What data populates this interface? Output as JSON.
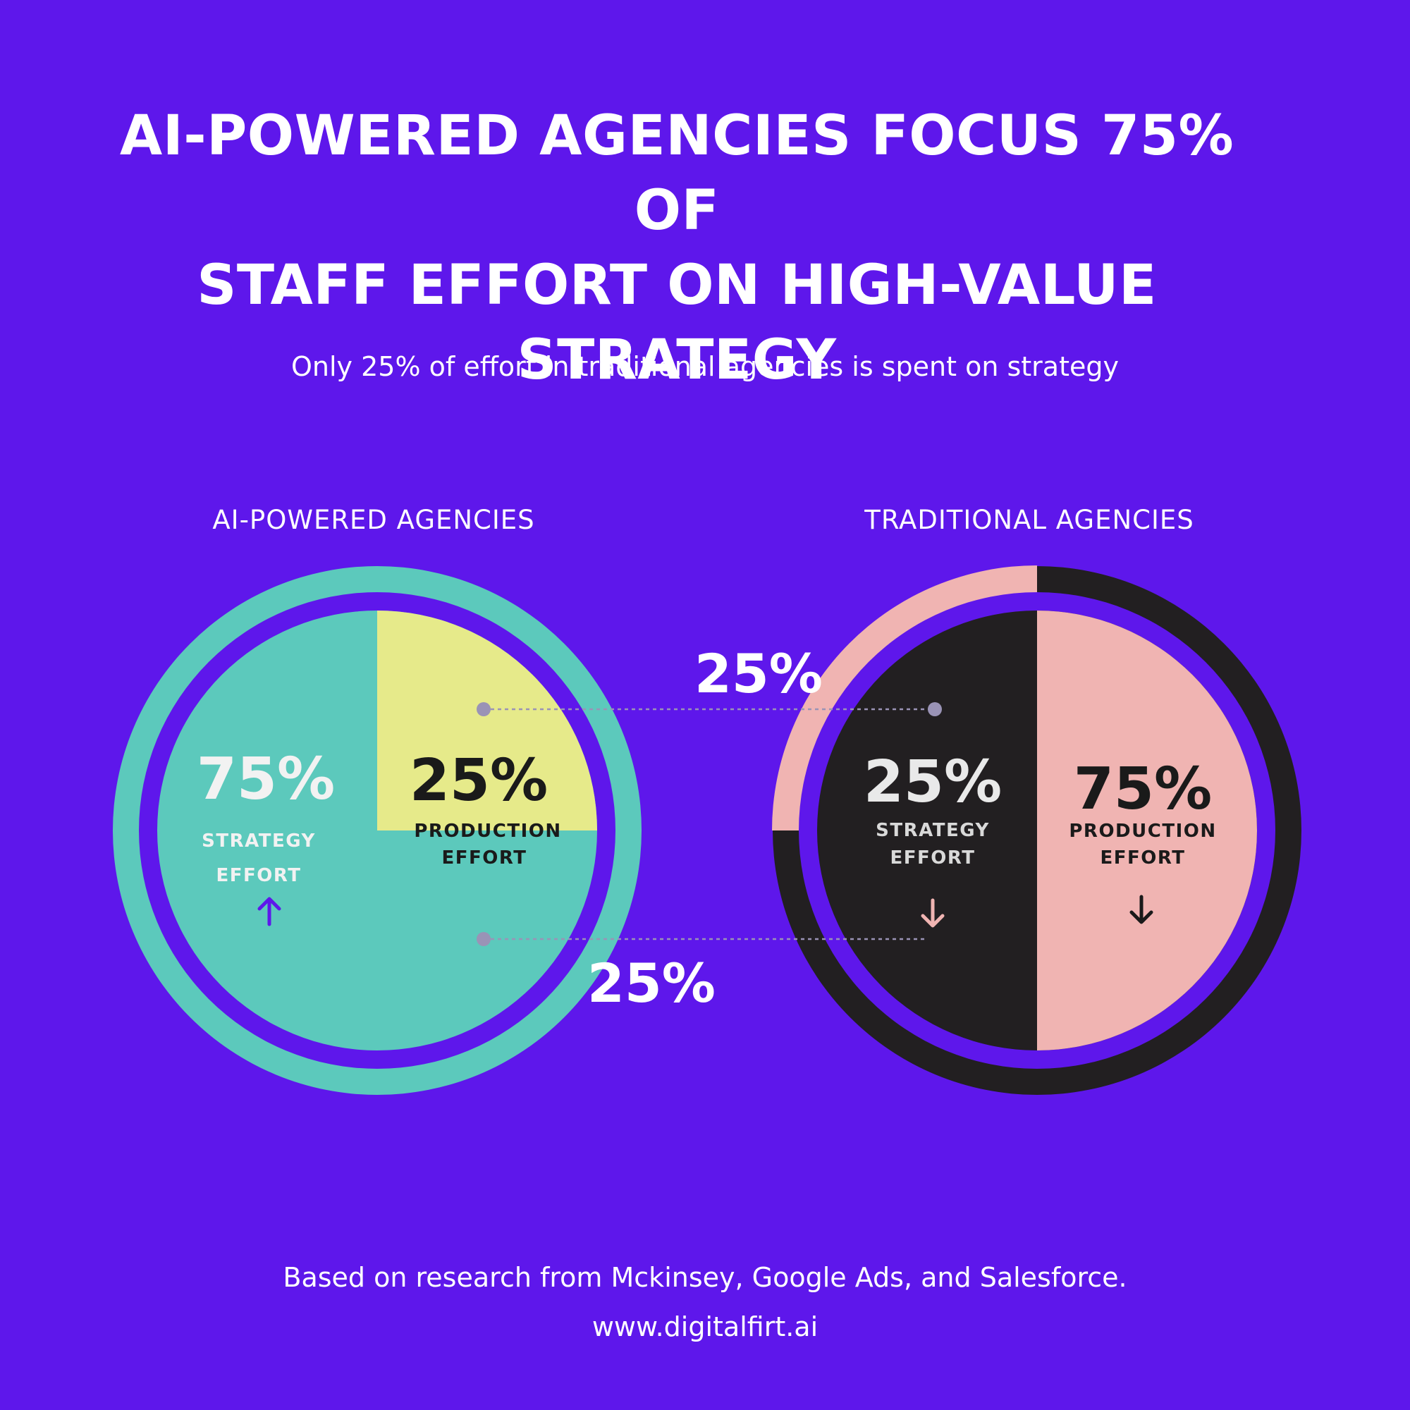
{
  "title_lines": [
    "AI-POWERED AGENCIES FOCUS 75% OF",
    "STAFF EFFORT ON HIGH-VALUE",
    "STRATEGY"
  ],
  "subtitle": "Only 25% of effort in traditional agencies is spent on strategy",
  "footer": {
    "source": "Based on research from Mckinsey, Google Ads, and Salesforce.",
    "url": "www.digitalfirt.ai"
  },
  "colors": {
    "background": "#5e17eb",
    "ai_strategy": "#5cc9bc",
    "ai_production": "#e6ea8a",
    "trad_strategy": "#221f21",
    "trad_production": "#f0b4b2",
    "connector": "#9a93b6",
    "arrow_up": "#5e17eb"
  },
  "chart_data": [
    {
      "type": "pie",
      "group_label": "AI-POWERED AGENCIES",
      "slices": [
        {
          "name": "STRATEGY EFFORT",
          "label_lines": [
            "STRATEGY",
            "EFFORT"
          ],
          "value": 75,
          "value_label": "75%",
          "trend": "up"
        },
        {
          "name": "PRODUCTION EFFORT",
          "label_lines": [
            "PRODUCTION",
            "EFFORT"
          ],
          "value": 25,
          "value_label": "25%",
          "trend": ""
        }
      ]
    },
    {
      "type": "pie",
      "group_label": "TRADITIONAL AGENCIES",
      "slices": [
        {
          "name": "STRATEGY EFFORT",
          "label_lines": [
            "STRATEGY",
            "EFFORT"
          ],
          "value": 25,
          "value_label": "25%",
          "trend": "down"
        },
        {
          "name": "PRODUCTION EFFORT",
          "label_lines": [
            "PRODUCTION",
            "EFFORT"
          ],
          "value": 75,
          "value_label": "75%",
          "trend": "down"
        }
      ],
      "outer_ring_fraction": 0.25
    }
  ],
  "annotations": [
    {
      "label": "25%"
    },
    {
      "label": "25%"
    }
  ]
}
